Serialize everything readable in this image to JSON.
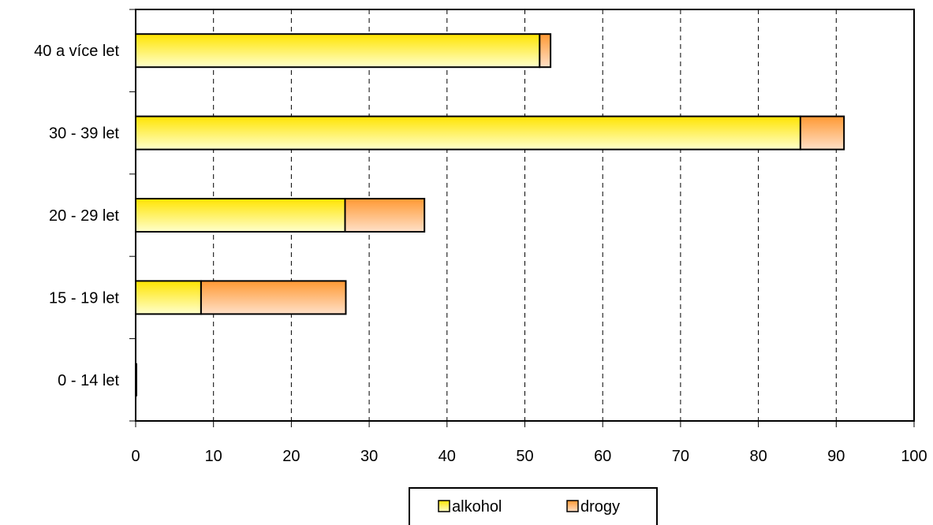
{
  "chart_data": {
    "type": "bar",
    "orientation": "horizontal",
    "stacked": true,
    "categories": [
      "0 - 14 let",
      "15 - 19 let",
      "20 - 29 let",
      "30 - 39 let",
      "40 a více let"
    ],
    "series": [
      {
        "name": "alkohol",
        "values": [
          0,
          8.4,
          26.9,
          85.4,
          51.9
        ]
      },
      {
        "name": "drogy",
        "values": [
          0,
          18.6,
          10.2,
          5.6,
          1.4
        ]
      }
    ],
    "xlim": [
      0,
      100
    ],
    "x_ticks": [
      0,
      10,
      20,
      30,
      40,
      50,
      60,
      70,
      80,
      90,
      100
    ],
    "grid": "vertical dashed",
    "legend_position": "bottom",
    "colors": {
      "alkohol_top": "#ffe400",
      "alkohol_bottom": "#ffffcc",
      "drogy_top": "#ff9933",
      "drogy_bottom": "#ffe0c8",
      "stroke": "#000000"
    }
  }
}
